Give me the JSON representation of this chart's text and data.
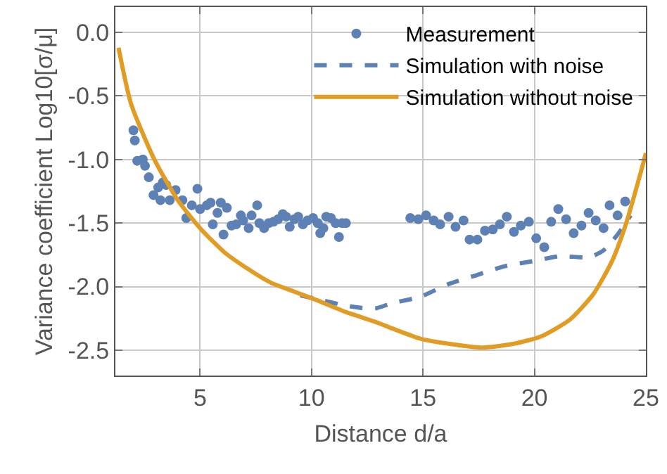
{
  "chart_data": {
    "type": "scatter",
    "xlabel": "Distance d/a",
    "ylabel": "Variance coefficient Log10[σ/μ]",
    "xlim": [
      1.2,
      25
    ],
    "ylim": [
      -2.7,
      0.2
    ],
    "xticks": [
      5,
      10,
      15,
      20,
      25
    ],
    "yticks": [
      {
        "value": 0,
        "label": "0.0"
      },
      {
        "value": -0.5,
        "label": "-0.5"
      },
      {
        "value": -1,
        "label": "-1.0"
      },
      {
        "value": -1.5,
        "label": "-1.5"
      },
      {
        "value": -2,
        "label": "-2.0"
      },
      {
        "value": -2.5,
        "label": "-2.5"
      }
    ],
    "grid": true,
    "legend": "top right",
    "series": [
      {
        "name": "Measurement",
        "marker": "circle",
        "color": "#5e81b5",
        "x": [
          2.01,
          2.07,
          2.18,
          2.43,
          2.53,
          2.7,
          2.91,
          3.12,
          3.33,
          3.48,
          3.22,
          3.64,
          3.9,
          4.21,
          4.38,
          4.63,
          4.88,
          5.0,
          5.3,
          5.47,
          5.57,
          5.78,
          5.93,
          6.05,
          6.2,
          6.41,
          6.62,
          6.83,
          6.93,
          7.18,
          7.31,
          7.56,
          7.66,
          7.87,
          8.08,
          8.29,
          8.5,
          8.71,
          8.86,
          9.02,
          9.23,
          9.4,
          9.61,
          9.82,
          10.07,
          10.28,
          10.39,
          10.53,
          10.66,
          10.87,
          11.08,
          11.23,
          11.37,
          11.54,
          14.43,
          14.79,
          15.14,
          15.48,
          15.77,
          16.15,
          16.46,
          16.82,
          17.09,
          17.44,
          17.78,
          18.13,
          18.45,
          18.76,
          19.08,
          19.39,
          19.75,
          20.08,
          20.44,
          20.75,
          21.07,
          21.42,
          21.76,
          22.11,
          22.43,
          22.75,
          23.1,
          23.37,
          23.73,
          24.07
        ],
        "values": [
          -0.77,
          -0.85,
          -1.01,
          -1.0,
          -1.05,
          -1.14,
          -1.28,
          -1.22,
          -1.18,
          -1.2,
          -1.32,
          -1.32,
          -1.24,
          -1.32,
          -1.46,
          -1.36,
          -1.23,
          -1.39,
          -1.36,
          -1.34,
          -1.51,
          -1.42,
          -1.34,
          -1.59,
          -1.38,
          -1.52,
          -1.51,
          -1.44,
          -1.48,
          -1.54,
          -1.44,
          -1.36,
          -1.5,
          -1.54,
          -1.5,
          -1.49,
          -1.47,
          -1.43,
          -1.45,
          -1.53,
          -1.47,
          -1.45,
          -1.51,
          -1.48,
          -1.46,
          -1.5,
          -1.58,
          -1.54,
          -1.45,
          -1.46,
          -1.5,
          -1.61,
          -1.5,
          -1.5,
          -1.46,
          -1.47,
          -1.44,
          -1.48,
          -1.51,
          -1.45,
          -1.53,
          -1.48,
          -1.63,
          -1.63,
          -1.56,
          -1.55,
          -1.51,
          -1.45,
          -1.57,
          -1.52,
          -1.49,
          -1.62,
          -1.69,
          -1.49,
          -1.39,
          -1.47,
          -1.58,
          -1.52,
          -1.42,
          -1.48,
          -1.54,
          -1.36,
          -1.44,
          -1.33
        ]
      },
      {
        "name": "Simulation with noise",
        "type": "line",
        "line_style": "dashed",
        "marker": "none",
        "color": "#5e81b5",
        "x": [
          9.5,
          10.28,
          11.54,
          12.37,
          12.9,
          13.63,
          14.88,
          16.15,
          17.4,
          18.66,
          19.92,
          21.18,
          22.43,
          23.06,
          23.69,
          24.32
        ],
        "values": [
          -2.07,
          -2.1,
          -2.15,
          -2.17,
          -2.17,
          -2.13,
          -2.08,
          -1.98,
          -1.91,
          -1.84,
          -1.8,
          -1.76,
          -1.77,
          -1.72,
          -1.6,
          -1.44
        ]
      },
      {
        "name": "Simulation without noise",
        "type": "line",
        "line_style": "solid",
        "marker": "none",
        "color": "#e19c24",
        "x": [
          1.34,
          1.9,
          2.95,
          4.0,
          5.05,
          6.09,
          7.14,
          8.19,
          9.23,
          10.28,
          11.54,
          12.9,
          13.63,
          14.88,
          16.15,
          17.61,
          19.08,
          20.33,
          21.59,
          22.64,
          23.48,
          24.1,
          24.88,
          25.0
        ],
        "values": [
          -0.12,
          -0.56,
          -1.0,
          -1.32,
          -1.55,
          -1.73,
          -1.86,
          -1.97,
          -2.04,
          -2.11,
          -2.2,
          -2.28,
          -2.33,
          -2.41,
          -2.45,
          -2.48,
          -2.45,
          -2.39,
          -2.26,
          -2.06,
          -1.8,
          -1.51,
          -1.03,
          -0.95
        ]
      }
    ]
  }
}
